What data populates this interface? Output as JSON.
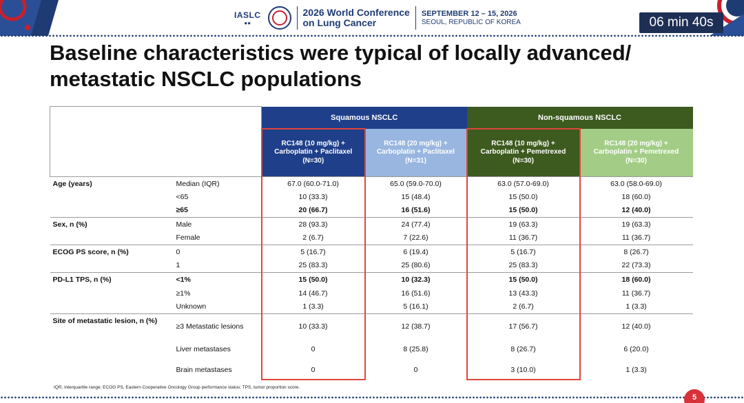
{
  "header": {
    "org": "IASLC",
    "conference_line1": "2026 World Conference",
    "conference_line2": "on Lung Cancer",
    "dates": "SEPTEMBER 12 – 15, 2026",
    "location": "SEOUL, REPUBLIC OF KOREA",
    "timer": "06 min 40s",
    "colors": {
      "brand": "#1f3b73",
      "accent_red": "#c8202e",
      "timer_bg": "#1e2f55"
    }
  },
  "slide": {
    "title_line1": "Baseline characteristics were typical of locally advanced/",
    "title_line2": "metastatic NSCLC populations",
    "page_number": "5",
    "footnote": "IQR, interquartile range; ECOG PS, Eastern Cooperative Oncology Group performance status; TPS, tumor proportion score."
  },
  "table": {
    "groups": [
      {
        "label": "Squamous NSCLC",
        "color": "#1f3f8a"
      },
      {
        "label": "Non-squamous NSCLC",
        "color": "#3d5a1f"
      }
    ],
    "arms": [
      {
        "line1": "RC148 (10 mg/kg) +",
        "line2": "Carboplatin + Paclitaxel",
        "line3": "(N=30)",
        "color": "#1f3f8a"
      },
      {
        "line1": "RC148 (20 mg/kg) +",
        "line2": "Carboplatin + Paclitaxel",
        "line3": "(N=31)",
        "color": "#98b6df"
      },
      {
        "line1": "RC148 (10 mg/kg) +",
        "line2": "Carboplatin + Pemetrexed",
        "line3": "(N=30)",
        "color": "#3d5a1f"
      },
      {
        "line1": "RC148 (20 mg/kg) +",
        "line2": "Carboplatin + Pemetrexed",
        "line3": "(N=30)",
        "color": "#a3cd86"
      }
    ],
    "rows": [
      {
        "category": "Age (years)",
        "sub": "Median (IQR)",
        "values": [
          "67.0 (60.0-71.0)",
          "65.0 (59.0-70.0)",
          "63.0 (57.0-69.0)",
          "63.0 (58.0-69.0)"
        ]
      },
      {
        "category": "",
        "sub": "<65",
        "values": [
          "10 (33.3)",
          "15 (48.4)",
          "15 (50.0)",
          "18 (60.0)"
        ]
      },
      {
        "category": "",
        "sub": "≥65",
        "values": [
          "20 (66.7)",
          "16 (51.6)",
          "15 (50.0)",
          "12 (40.0)"
        ]
      },
      {
        "category": "Sex, n (%)",
        "sub": "Male",
        "values": [
          "28 (93.3)",
          "24 (77.4)",
          "19 (63.3)",
          "19 (63.3)"
        ]
      },
      {
        "category": "",
        "sub": "Female",
        "values": [
          "2 (6.7)",
          "7 (22.6)",
          "11 (36.7)",
          "11 (36.7)"
        ]
      },
      {
        "category": "ECOG PS score, n (%)",
        "sub": "0",
        "values": [
          "5 (16.7)",
          "6 (19.4)",
          "5 (16.7)",
          "8 (26.7)"
        ]
      },
      {
        "category": "",
        "sub": "1",
        "values": [
          "25 (83.3)",
          "25 (80.6)",
          "25 (83.3)",
          "22 (73.3)"
        ]
      },
      {
        "category": "PD-L1 TPS, n (%)",
        "sub": "<1%",
        "values": [
          "15 (50.0)",
          "10 (32.3)",
          "15 (50.0)",
          "18 (60.0)"
        ]
      },
      {
        "category": "",
        "sub": "≥1%",
        "values": [
          "14 (46.7)",
          "16 (51.6)",
          "13 (43.3)",
          "11 (36.7)"
        ]
      },
      {
        "category": "",
        "sub": "Unknown",
        "values": [
          "1 (3.3)",
          "5 (16.1)",
          "2 (6.7)",
          "1 (3.3)"
        ]
      },
      {
        "category": "Site of metastatic lesion, n (%)",
        "sub": "≥3 Metastatic lesions",
        "values": [
          "10 (33.3)",
          "12 (38.7)",
          "17 (56.7)",
          "12 (40.0)"
        ]
      },
      {
        "category": "",
        "sub": "Liver metastases",
        "values": [
          "0",
          "8 (25.8)",
          "8 (26.7)",
          "6 (20.0)"
        ]
      },
      {
        "category": "",
        "sub": "Brain metastases",
        "values": [
          "0",
          "0",
          "3 (10.0)",
          "1 (3.3)"
        ]
      }
    ]
  }
}
